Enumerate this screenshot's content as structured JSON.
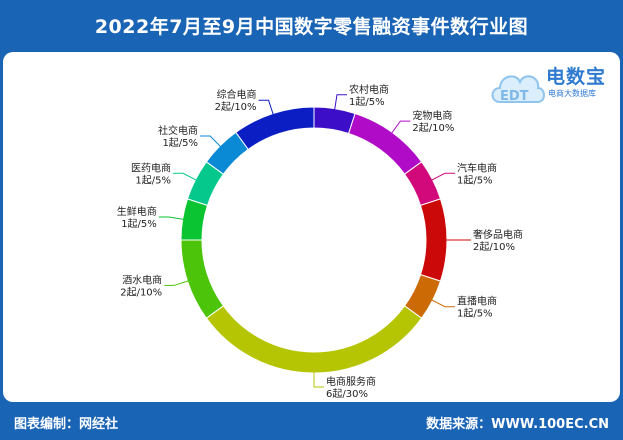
{
  "title": "2022年7月至9月中国数字零售融资事件数行业图",
  "footer": {
    "editor": "图表编制：网经社",
    "source": "数据来源：WWW.100EC.CN"
  },
  "logo": {
    "brand": "电数宝",
    "sub": "电商大数据库",
    "mark": "EDT"
  },
  "chart_data": {
    "type": "pie",
    "donut": true,
    "unit": "起",
    "slices": [
      {
        "name": "综合电商",
        "value": 2,
        "pct": "10%",
        "color": "#0b1ec4",
        "label": "2起/10%"
      },
      {
        "name": "农村电商",
        "value": 1,
        "pct": "5%",
        "color": "#3d0ec8",
        "label": "1起/5%"
      },
      {
        "name": "宠物电商",
        "value": 2,
        "pct": "10%",
        "color": "#b00cc8",
        "label": "2起/10%"
      },
      {
        "name": "汽车电商",
        "value": 1,
        "pct": "5%",
        "color": "#d2097a",
        "label": "1起/5%"
      },
      {
        "name": "奢侈品电商",
        "value": 2,
        "pct": "10%",
        "color": "#cc0909",
        "label": "2起/10%"
      },
      {
        "name": "直播电商",
        "value": 1,
        "pct": "5%",
        "color": "#cc6a05",
        "label": "1起/5%"
      },
      {
        "name": "电商服务商",
        "value": 6,
        "pct": "30%",
        "color": "#b6c503",
        "label": "6起/30%"
      },
      {
        "name": "酒水电商",
        "value": 2,
        "pct": "10%",
        "color": "#4cc40a",
        "label": "2起/10%"
      },
      {
        "name": "生鲜电商",
        "value": 1,
        "pct": "5%",
        "color": "#0ac432",
        "label": "1起/5%"
      },
      {
        "name": "医药电商",
        "value": 1,
        "pct": "5%",
        "color": "#05c98c",
        "label": "1起/5%"
      },
      {
        "name": "社交电商",
        "value": 1,
        "pct": "5%",
        "color": "#0a8ad4",
        "label": "1起/5%"
      }
    ]
  }
}
